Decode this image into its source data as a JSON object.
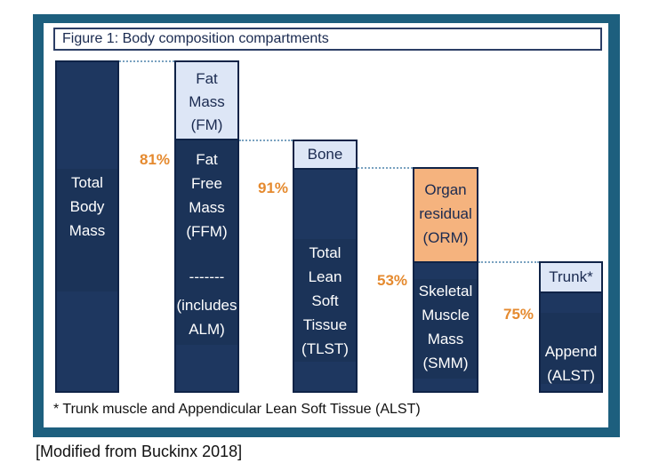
{
  "title": "Figure 1: Body composition compartments",
  "columns": {
    "tbm": {
      "label": "Total\nBody\nMass"
    },
    "fm": {
      "label": "Fat\nMass\n(FM)"
    },
    "ffm": {
      "label": "Fat\nFree\nMass\n(FFM)",
      "divider": "-------",
      "note": "(includes\nALM)"
    },
    "bone": {
      "label": "Bone"
    },
    "tlst": {
      "label": "Total\nLean\nSoft\nTissue\n(TLST)"
    },
    "orm": {
      "label": "Organ\nresidual\n(ORM)"
    },
    "smm": {
      "label": "Skeletal\nMuscle\nMass\n(SMM)"
    },
    "trunk": {
      "label": "Trunk*"
    },
    "alst": {
      "label": "Append\n(ALST)"
    }
  },
  "percentages": {
    "ffm": "81%",
    "tlst": "91%",
    "smm": "53%",
    "alst": "75%"
  },
  "footnote": "* Trunk muscle and Appendicular Lean Soft Tissue (ALST)",
  "caption": "[Modified from Buckinx 2018]",
  "colors": {
    "frame": "#1d5f7e",
    "dark_block": "#1e3760",
    "light_block": "#dde6f6",
    "orange_block": "#f5b37e",
    "percent": "#e58a2f"
  }
}
